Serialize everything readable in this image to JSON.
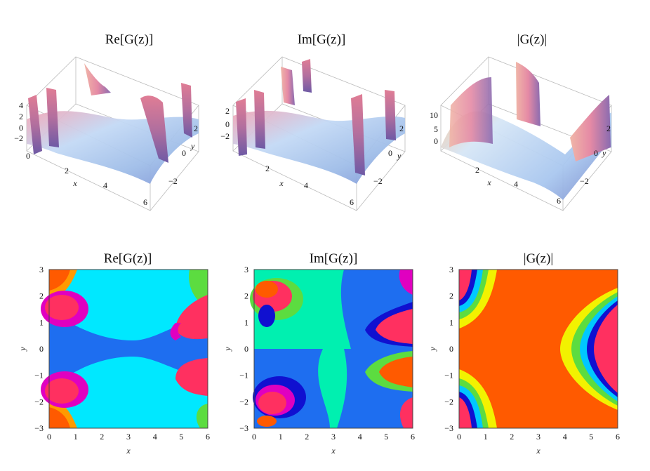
{
  "chart_data": [
    {
      "type": "surface",
      "title": "Re[G(z)]",
      "xlabel": "x",
      "ylabel": "y",
      "x_ticks": [
        "0",
        "2",
        "4",
        "6"
      ],
      "y_ticks": [
        "−2",
        "0",
        "2"
      ],
      "z_ticks": [
        "4",
        "2",
        "0",
        "−2"
      ],
      "zlim": [
        -3,
        4
      ]
    },
    {
      "type": "surface",
      "title": "Im[G(z)]",
      "xlabel": "x",
      "ylabel": "y",
      "x_ticks": [
        "0",
        "2",
        "4",
        "6"
      ],
      "y_ticks": [
        "−2",
        "0",
        "2"
      ],
      "z_ticks": [
        "2",
        "0",
        "−2"
      ],
      "zlim": [
        -3,
        3
      ]
    },
    {
      "type": "surface",
      "title": "|G(z)|",
      "xlabel": "x",
      "ylabel": "y",
      "x_ticks": [
        "0",
        "2",
        "4",
        "6"
      ],
      "y_ticks": [
        "−2",
        "0",
        "2"
      ],
      "z_ticks": [
        "10",
        "5",
        "0"
      ],
      "zlim": [
        0,
        12
      ]
    },
    {
      "type": "heatmap",
      "title": "Re[G(z)]",
      "xlabel": "x",
      "ylabel": "y",
      "xlim": [
        0,
        6
      ],
      "ylim": [
        -3,
        3
      ],
      "x_ticks": [
        "0",
        "1",
        "2",
        "3",
        "4",
        "5",
        "6"
      ],
      "y_ticks": [
        "−3",
        "−2",
        "−1",
        "0",
        "1",
        "2",
        "3"
      ]
    },
    {
      "type": "heatmap",
      "title": "Im[G(z)]",
      "xlabel": "x",
      "ylabel": "y",
      "xlim": [
        0,
        6
      ],
      "ylim": [
        -3,
        3
      ],
      "x_ticks": [
        "0",
        "1",
        "2",
        "3",
        "4",
        "5",
        "6"
      ],
      "y_ticks": [
        "−3",
        "−2",
        "−1",
        "0",
        "1",
        "2",
        "3"
      ]
    },
    {
      "type": "heatmap",
      "title": "|G(z)|",
      "xlabel": "x",
      "ylabel": "y",
      "xlim": [
        0,
        6
      ],
      "ylim": [
        -3,
        3
      ],
      "x_ticks": [
        "0",
        "1",
        "2",
        "3",
        "4",
        "5",
        "6"
      ],
      "y_ticks": [
        "−3",
        "−2",
        "−1",
        "0",
        "1",
        "2",
        "3"
      ]
    }
  ],
  "colors": {
    "contour_levels": [
      "#ff3060",
      "#e000c0",
      "#1010d0",
      "#1e6ef0",
      "#00c8ff",
      "#00f0b0",
      "#5cdc40",
      "#f2f200",
      "#ff9a00",
      "#ff5a00"
    ],
    "surface_low": "#5a63b8",
    "surface_mid": "#bcd6f4",
    "surface_high": "#e3708a"
  }
}
